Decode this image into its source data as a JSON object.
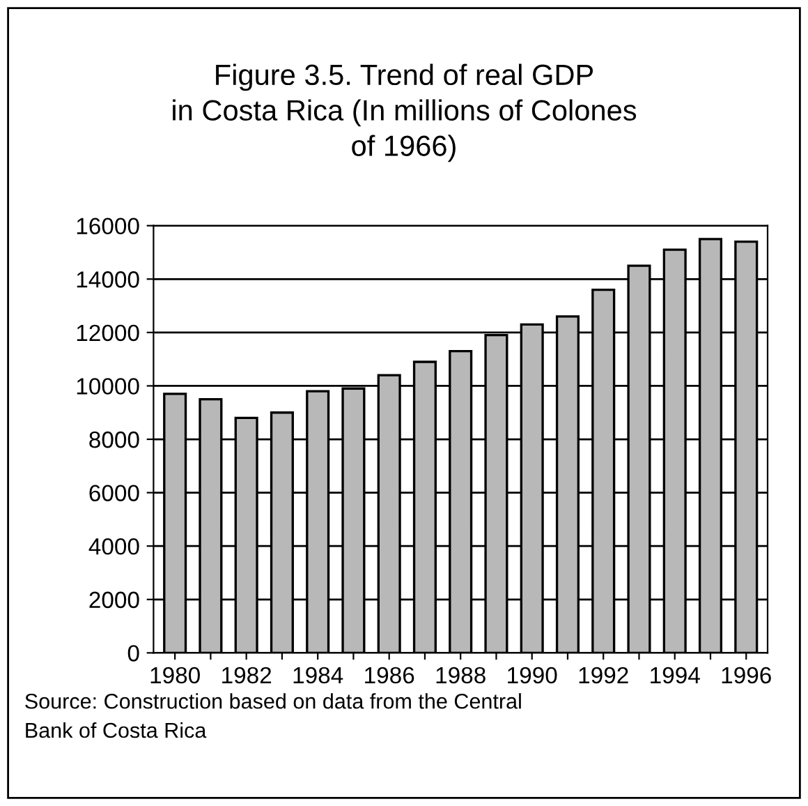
{
  "chart_data": {
    "type": "bar",
    "title": "Figure 3.5. Trend of real GDP\nin Costa Rica (In millions of Colones\nof 1966)",
    "categories": [
      "1980",
      null,
      "1982",
      null,
      "1984",
      null,
      "1986",
      null,
      "1988",
      null,
      "1990",
      null,
      "1992",
      null,
      "1994",
      null,
      "1996"
    ],
    "values": [
      9700,
      9500,
      8800,
      9000,
      9800,
      9900,
      10400,
      10900,
      11300,
      11900,
      12300,
      12600,
      13600,
      14500,
      15100,
      15500,
      15400
    ],
    "color": "#b8b8b8",
    "ylim": [
      0,
      16000
    ],
    "yticks": [
      0,
      2000,
      4000,
      6000,
      8000,
      10000,
      12000,
      14000,
      16000
    ],
    "grid": "y",
    "annotations": [
      "Source: Construction based on data from the Central\nBank of Costa Rica"
    ]
  }
}
